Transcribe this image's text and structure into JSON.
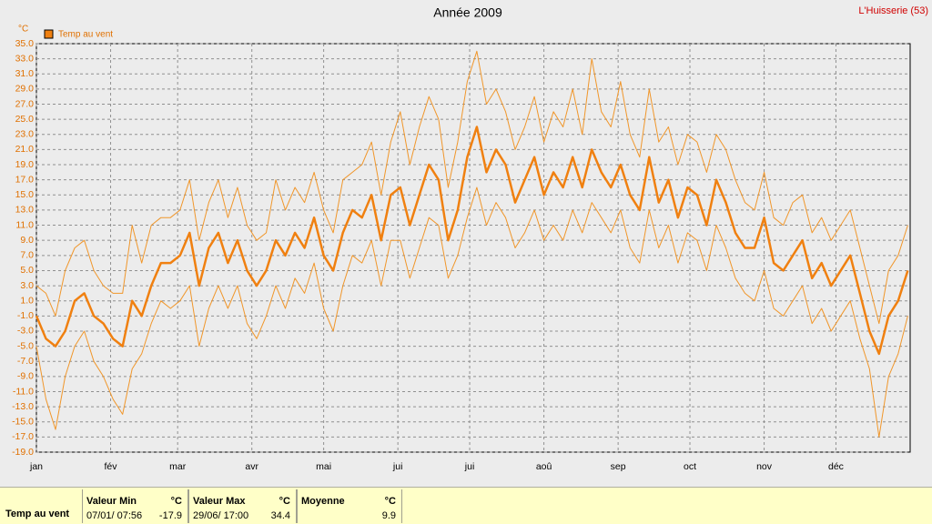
{
  "chart_data": {
    "type": "line",
    "title": "Année 2009",
    "annotation": "L'Huisserie (53)",
    "y_label": "°C",
    "grid": true,
    "legend": "top-left",
    "xlim": [
      0,
      365
    ],
    "xticks": [
      {
        "value": 0,
        "label": "jan"
      },
      {
        "value": 31,
        "label": "fév"
      },
      {
        "value": 59,
        "label": "mar"
      },
      {
        "value": 90,
        "label": "avr"
      },
      {
        "value": 120,
        "label": "mai"
      },
      {
        "value": 151,
        "label": "jui"
      },
      {
        "value": 181,
        "label": "jui"
      },
      {
        "value": 212,
        "label": "aoû"
      },
      {
        "value": 243,
        "label": "sep"
      },
      {
        "value": 273,
        "label": "oct"
      },
      {
        "value": 304,
        "label": "nov"
      },
      {
        "value": 334,
        "label": "déc"
      }
    ],
    "ylim": [
      -19,
      35
    ],
    "yticks": [
      {
        "value": 35,
        "label": "35.0"
      },
      {
        "value": 33,
        "label": "33.0"
      },
      {
        "value": 31,
        "label": "31.0"
      },
      {
        "value": 29,
        "label": "29.0"
      },
      {
        "value": 27,
        "label": "27.0"
      },
      {
        "value": 25,
        "label": "25.0"
      },
      {
        "value": 23,
        "label": "23.0"
      },
      {
        "value": 21,
        "label": "21.0"
      },
      {
        "value": 19,
        "label": "19.0"
      },
      {
        "value": 17,
        "label": "17.0"
      },
      {
        "value": 15,
        "label": "15.0"
      },
      {
        "value": 13,
        "label": "13.0"
      },
      {
        "value": 11,
        "label": "11.0"
      },
      {
        "value": 9,
        "label": "9.0"
      },
      {
        "value": 7,
        "label": "7.0"
      },
      {
        "value": 5,
        "label": "5.0"
      },
      {
        "value": 3,
        "label": "3.0"
      },
      {
        "value": 1,
        "label": "1.0"
      },
      {
        "value": -1,
        "label": "-1.0"
      },
      {
        "value": -3,
        "label": "-3.0"
      },
      {
        "value": -5,
        "label": "-5.0"
      },
      {
        "value": -7,
        "label": "-7.0"
      },
      {
        "value": -9,
        "label": "-9.0"
      },
      {
        "value": -11,
        "label": "-11.0"
      },
      {
        "value": -13,
        "label": "-13.0"
      },
      {
        "value": -15,
        "label": "-15.0"
      },
      {
        "value": -17,
        "label": "-17.0"
      },
      {
        "value": -19,
        "label": "-19.0"
      }
    ],
    "x": [
      0,
      4,
      8,
      12,
      16,
      20,
      24,
      28,
      32,
      36,
      40,
      44,
      48,
      52,
      56,
      60,
      64,
      68,
      72,
      76,
      80,
      84,
      88,
      92,
      96,
      100,
      104,
      108,
      112,
      116,
      120,
      124,
      128,
      132,
      136,
      140,
      144,
      148,
      152,
      156,
      160,
      164,
      168,
      172,
      176,
      180,
      184,
      188,
      192,
      196,
      200,
      204,
      208,
      212,
      216,
      220,
      224,
      228,
      232,
      236,
      240,
      244,
      248,
      252,
      256,
      260,
      264,
      268,
      272,
      276,
      280,
      284,
      288,
      292,
      296,
      300,
      304,
      308,
      312,
      316,
      320,
      324,
      328,
      332,
      336,
      340,
      344,
      348,
      352,
      356,
      360,
      364
    ],
    "series": [
      {
        "color": "#f0962a",
        "line_width": 1,
        "values": [
          3,
          2,
          -1,
          5,
          8,
          9,
          5,
          3,
          2,
          2,
          11,
          6,
          11,
          12,
          12,
          13,
          17,
          9,
          14,
          17,
          12,
          16,
          11,
          9,
          10,
          17,
          13,
          16,
          14,
          18,
          13,
          10,
          17,
          18,
          19,
          22,
          15,
          22,
          26,
          19,
          24,
          28,
          25,
          16,
          22,
          30,
          34,
          27,
          29,
          26,
          21,
          24,
          28,
          22,
          26,
          24,
          29,
          23,
          33,
          26,
          24,
          30,
          23,
          20,
          29,
          22,
          24,
          19,
          23,
          22,
          18,
          23,
          21,
          17,
          14,
          13,
          18,
          12,
          11,
          14,
          15,
          10,
          12,
          9,
          11,
          13,
          8,
          3,
          -2,
          5,
          7,
          11
        ]
      },
      {
        "name": "Temp au vent",
        "color": "#f08010",
        "line_width": 2.5,
        "values": [
          -1,
          -4,
          -5,
          -3,
          1,
          2,
          -1,
          -2,
          -4,
          -5,
          1,
          -1,
          3,
          6,
          6,
          7,
          10,
          3,
          8,
          10,
          6,
          9,
          5,
          3,
          5,
          9,
          7,
          10,
          8,
          12,
          7,
          5,
          10,
          13,
          12,
          15,
          9,
          15,
          16,
          11,
          15,
          19,
          17,
          9,
          13,
          20,
          24,
          18,
          21,
          19,
          14,
          17,
          20,
          15,
          18,
          16,
          20,
          16,
          21,
          18,
          16,
          19,
          15,
          13,
          20,
          14,
          17,
          12,
          16,
          15,
          11,
          17,
          14,
          10,
          8,
          8,
          12,
          6,
          5,
          7,
          9,
          4,
          6,
          3,
          5,
          7,
          2,
          -3,
          -6,
          -1,
          1,
          5
        ]
      },
      {
        "color": "#f0962a",
        "line_width": 1,
        "values": [
          -5,
          -12,
          -16,
          -9,
          -5,
          -3,
          -7,
          -9,
          -12,
          -14,
          -8,
          -6,
          -2,
          1,
          0,
          1,
          3,
          -5,
          0,
          3,
          0,
          3,
          -2,
          -4,
          -1,
          3,
          0,
          4,
          2,
          6,
          0,
          -3,
          3,
          7,
          6,
          9,
          3,
          9,
          9,
          4,
          8,
          12,
          11,
          4,
          7,
          12,
          16,
          11,
          14,
          12,
          8,
          10,
          13,
          9,
          11,
          9,
          13,
          10,
          14,
          12,
          10,
          13,
          8,
          6,
          13,
          8,
          11,
          6,
          10,
          9,
          5,
          11,
          8,
          4,
          2,
          1,
          5,
          0,
          -1,
          1,
          3,
          -2,
          0,
          -3,
          -1,
          1,
          -4,
          -8,
          -17,
          -9,
          -6,
          -1
        ]
      }
    ]
  },
  "stats": {
    "row_label": "Temp au vent",
    "columns": [
      {
        "header": "Valeur Min",
        "unit": "°C",
        "time": "07/01/ 07:56",
        "value": "-17.9"
      },
      {
        "header": "Valeur Max",
        "unit": "°C",
        "time": "29/06/ 17:00",
        "value": "34.4"
      },
      {
        "header": "Moyenne",
        "unit": "°C",
        "value": "9.9"
      }
    ]
  }
}
